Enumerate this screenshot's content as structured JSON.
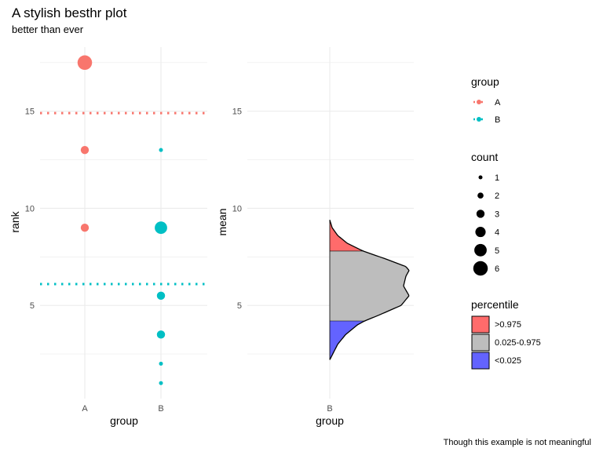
{
  "title": "A stylish besthr plot",
  "subtitle": "better than ever",
  "caption": "Though this example is not meaningful",
  "colors": {
    "A": "#F8766D",
    "B": "#00BFC4",
    "upper": "#FF6B6B",
    "middle": "#BDBDBD",
    "lower": "#6363FF",
    "grid": "#EBEBEB"
  },
  "chart_data": [
    {
      "type": "scatter",
      "xlabel": "group",
      "ylabel": "rank",
      "categories": [
        "A",
        "B"
      ],
      "ylim": [
        0.2,
        18.3
      ],
      "yticks": [
        5,
        10,
        15
      ],
      "points": [
        {
          "group": "A",
          "rank": 17.5,
          "count": 6
        },
        {
          "group": "A",
          "rank": 13,
          "count": 3
        },
        {
          "group": "A",
          "rank": 9,
          "count": 3
        },
        {
          "group": "B",
          "rank": 13,
          "count": 1
        },
        {
          "group": "B",
          "rank": 9,
          "count": 5
        },
        {
          "group": "B",
          "rank": 5.5,
          "count": 3
        },
        {
          "group": "B",
          "rank": 3.5,
          "count": 3
        },
        {
          "group": "B",
          "rank": 2,
          "count": 1
        },
        {
          "group": "B",
          "rank": 1,
          "count": 1
        }
      ],
      "mean_lines": [
        {
          "group": "A",
          "rank": 14.9
        },
        {
          "group": "B",
          "rank": 6.1
        }
      ]
    },
    {
      "type": "area",
      "xlabel": "group",
      "ylabel": "mean",
      "categories": [
        "B"
      ],
      "ylim": [
        0.2,
        18.3
      ],
      "yticks": [
        5,
        10,
        15
      ],
      "density": {
        "mean": [
          2.2,
          2.6,
          3.0,
          3.5,
          4.0,
          4.2,
          4.5,
          5.0,
          5.5,
          6.0,
          6.5,
          6.8,
          7.0,
          7.4,
          7.8,
          8.2,
          8.6,
          9.0,
          9.4
        ],
        "density": [
          0.0,
          0.05,
          0.1,
          0.2,
          0.35,
          0.44,
          0.62,
          0.9,
          1.0,
          0.93,
          0.96,
          1.0,
          0.96,
          0.7,
          0.42,
          0.22,
          0.1,
          0.03,
          0.0
        ]
      },
      "percentile_breaks": {
        "lower": 4.2,
        "upper": 7.8
      }
    }
  ],
  "legend_group": {
    "title": "group",
    "items": [
      {
        "label": "A",
        "color": "#F8766D"
      },
      {
        "label": "B",
        "color": "#00BFC4"
      }
    ]
  },
  "legend_count": {
    "title": "count",
    "items": [
      {
        "label": "1",
        "value": 1
      },
      {
        "label": "2",
        "value": 2
      },
      {
        "label": "3",
        "value": 3
      },
      {
        "label": "4",
        "value": 4
      },
      {
        "label": "5",
        "value": 5
      },
      {
        "label": "6",
        "value": 6
      }
    ]
  },
  "legend_percentile": {
    "title": "percentile",
    "items": [
      {
        "label": ">0.975",
        "color": "#FF6B6B"
      },
      {
        "label": "0.025-0.975",
        "color": "#BDBDBD"
      },
      {
        "label": "<0.025",
        "color": "#6363FF"
      }
    ]
  }
}
